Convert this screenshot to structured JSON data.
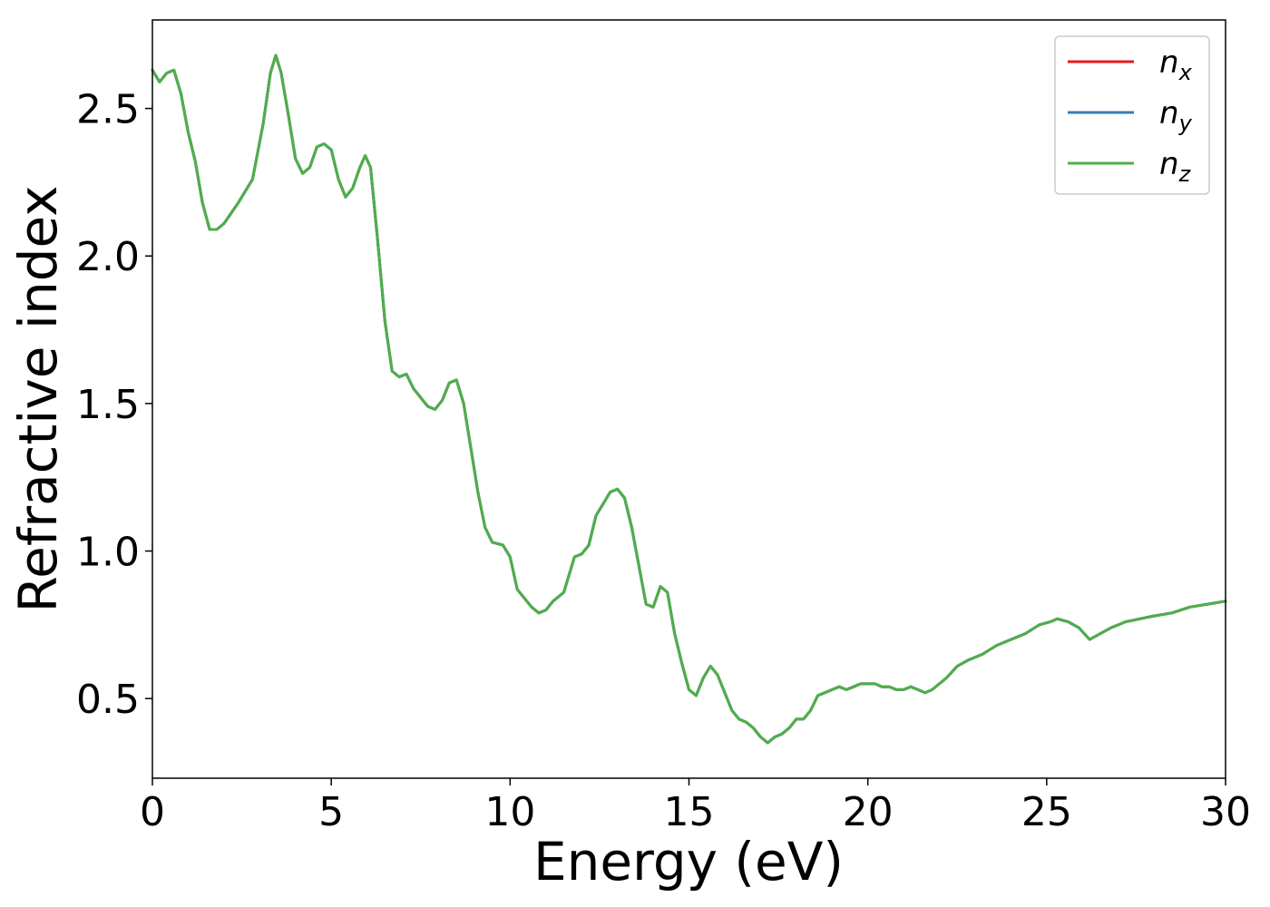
{
  "chart_data": {
    "type": "line",
    "xlabel": "Energy (eV)",
    "ylabel": "Refractive index",
    "xlim": [
      0,
      30
    ],
    "ylim": [
      0.23,
      2.8
    ],
    "xticks": [
      "0",
      "5",
      "10",
      "15",
      "20",
      "25",
      "30"
    ],
    "yticks": [
      "0.5",
      "1.0",
      "1.5",
      "2.0",
      "2.5"
    ],
    "grid": false,
    "legend_position": "top-right",
    "series": [
      {
        "name": "n",
        "subscript": "x",
        "color": "#e41a1c",
        "x": [
          0,
          0.2,
          0.4,
          0.6,
          0.8,
          1.0,
          1.2,
          1.4,
          1.6,
          1.8,
          2.0,
          2.4,
          2.8,
          3.1,
          3.3,
          3.45,
          3.6,
          3.8,
          4.0,
          4.2,
          4.4,
          4.6,
          4.8,
          5.0,
          5.2,
          5.4,
          5.6,
          5.8,
          5.95,
          6.1,
          6.3,
          6.5,
          6.7,
          6.9,
          7.1,
          7.3,
          7.5,
          7.7,
          7.9,
          8.1,
          8.3,
          8.5,
          8.7,
          8.9,
          9.1,
          9.3,
          9.5,
          9.8,
          10.0,
          10.2,
          10.4,
          10.6,
          10.8,
          11.0,
          11.2,
          11.5,
          11.8,
          12.0,
          12.2,
          12.4,
          12.6,
          12.8,
          13.0,
          13.2,
          13.4,
          13.6,
          13.8,
          14.0,
          14.2,
          14.4,
          14.6,
          14.8,
          15.0,
          15.2,
          15.4,
          15.6,
          15.8,
          16.0,
          16.2,
          16.4,
          16.6,
          16.8,
          17.0,
          17.2,
          17.4,
          17.6,
          17.8,
          18.0,
          18.2,
          18.4,
          18.6,
          18.8,
          19.0,
          19.2,
          19.4,
          19.6,
          19.8,
          20.0,
          20.2,
          20.4,
          20.6,
          20.8,
          21.0,
          21.2,
          21.4,
          21.6,
          21.8,
          22.0,
          22.2,
          22.5,
          22.8,
          23.2,
          23.6,
          24.0,
          24.4,
          24.8,
          25.1,
          25.3,
          25.6,
          25.9,
          26.2,
          26.5,
          26.8,
          27.2,
          27.6,
          28.0,
          28.5,
          29.0,
          29.5,
          30.0
        ],
        "y": [
          2.63,
          2.59,
          2.62,
          2.63,
          2.55,
          2.42,
          2.32,
          2.18,
          2.09,
          2.09,
          2.11,
          2.18,
          2.26,
          2.45,
          2.62,
          2.68,
          2.62,
          2.48,
          2.33,
          2.28,
          2.3,
          2.37,
          2.38,
          2.36,
          2.26,
          2.2,
          2.23,
          2.3,
          2.34,
          2.3,
          2.05,
          1.78,
          1.61,
          1.59,
          1.6,
          1.55,
          1.52,
          1.49,
          1.48,
          1.51,
          1.57,
          1.58,
          1.5,
          1.35,
          1.2,
          1.08,
          1.03,
          1.02,
          0.98,
          0.87,
          0.84,
          0.81,
          0.79,
          0.8,
          0.83,
          0.86,
          0.98,
          0.99,
          1.02,
          1.12,
          1.16,
          1.2,
          1.21,
          1.18,
          1.08,
          0.95,
          0.82,
          0.81,
          0.88,
          0.86,
          0.72,
          0.62,
          0.53,
          0.51,
          0.57,
          0.61,
          0.58,
          0.52,
          0.46,
          0.43,
          0.42,
          0.4,
          0.37,
          0.35,
          0.37,
          0.38,
          0.4,
          0.43,
          0.43,
          0.46,
          0.51,
          0.52,
          0.53,
          0.54,
          0.53,
          0.54,
          0.55,
          0.55,
          0.55,
          0.54,
          0.54,
          0.53,
          0.53,
          0.54,
          0.53,
          0.52,
          0.53,
          0.55,
          0.57,
          0.61,
          0.63,
          0.65,
          0.68,
          0.7,
          0.72,
          0.75,
          0.76,
          0.77,
          0.76,
          0.74,
          0.7,
          0.72,
          0.74,
          0.76,
          0.77,
          0.78,
          0.79,
          0.81,
          0.82,
          0.83
        ]
      },
      {
        "name": "n",
        "subscript": "y",
        "color": "#377eb8",
        "x": [
          0,
          0.2,
          0.4,
          0.6,
          0.8,
          1.0,
          1.2,
          1.4,
          1.6,
          1.8,
          2.0,
          2.4,
          2.8,
          3.1,
          3.3,
          3.45,
          3.6,
          3.8,
          4.0,
          4.2,
          4.4,
          4.6,
          4.8,
          5.0,
          5.2,
          5.4,
          5.6,
          5.8,
          5.95,
          6.1,
          6.3,
          6.5,
          6.7,
          6.9,
          7.1,
          7.3,
          7.5,
          7.7,
          7.9,
          8.1,
          8.3,
          8.5,
          8.7,
          8.9,
          9.1,
          9.3,
          9.5,
          9.8,
          10.0,
          10.2,
          10.4,
          10.6,
          10.8,
          11.0,
          11.2,
          11.5,
          11.8,
          12.0,
          12.2,
          12.4,
          12.6,
          12.8,
          13.0,
          13.2,
          13.4,
          13.6,
          13.8,
          14.0,
          14.2,
          14.4,
          14.6,
          14.8,
          15.0,
          15.2,
          15.4,
          15.6,
          15.8,
          16.0,
          16.2,
          16.4,
          16.6,
          16.8,
          17.0,
          17.2,
          17.4,
          17.6,
          17.8,
          18.0,
          18.2,
          18.4,
          18.6,
          18.8,
          19.0,
          19.2,
          19.4,
          19.6,
          19.8,
          20.0,
          20.2,
          20.4,
          20.6,
          20.8,
          21.0,
          21.2,
          21.4,
          21.6,
          21.8,
          22.0,
          22.2,
          22.5,
          22.8,
          23.2,
          23.6,
          24.0,
          24.4,
          24.8,
          25.1,
          25.3,
          25.6,
          25.9,
          26.2,
          26.5,
          26.8,
          27.2,
          27.6,
          28.0,
          28.5,
          29.0,
          29.5,
          30.0
        ],
        "y": [
          2.63,
          2.59,
          2.62,
          2.63,
          2.55,
          2.42,
          2.32,
          2.18,
          2.09,
          2.09,
          2.11,
          2.18,
          2.26,
          2.45,
          2.62,
          2.68,
          2.62,
          2.48,
          2.33,
          2.28,
          2.3,
          2.37,
          2.38,
          2.36,
          2.26,
          2.2,
          2.23,
          2.3,
          2.34,
          2.3,
          2.05,
          1.78,
          1.61,
          1.59,
          1.6,
          1.55,
          1.52,
          1.49,
          1.48,
          1.51,
          1.57,
          1.58,
          1.5,
          1.35,
          1.2,
          1.08,
          1.03,
          1.02,
          0.98,
          0.87,
          0.84,
          0.81,
          0.79,
          0.8,
          0.83,
          0.86,
          0.98,
          0.99,
          1.02,
          1.12,
          1.16,
          1.2,
          1.21,
          1.18,
          1.08,
          0.95,
          0.82,
          0.81,
          0.88,
          0.86,
          0.72,
          0.62,
          0.53,
          0.51,
          0.57,
          0.61,
          0.58,
          0.52,
          0.46,
          0.43,
          0.42,
          0.4,
          0.37,
          0.35,
          0.37,
          0.38,
          0.4,
          0.43,
          0.43,
          0.46,
          0.51,
          0.52,
          0.53,
          0.54,
          0.53,
          0.54,
          0.55,
          0.55,
          0.55,
          0.54,
          0.54,
          0.53,
          0.53,
          0.54,
          0.53,
          0.52,
          0.53,
          0.55,
          0.57,
          0.61,
          0.63,
          0.65,
          0.68,
          0.7,
          0.72,
          0.75,
          0.76,
          0.77,
          0.76,
          0.74,
          0.7,
          0.72,
          0.74,
          0.76,
          0.77,
          0.78,
          0.79,
          0.81,
          0.82,
          0.83
        ]
      },
      {
        "name": "n",
        "subscript": "z",
        "color": "#4daf4a",
        "x": [
          0,
          0.2,
          0.4,
          0.6,
          0.8,
          1.0,
          1.2,
          1.4,
          1.6,
          1.8,
          2.0,
          2.4,
          2.8,
          3.1,
          3.3,
          3.45,
          3.6,
          3.8,
          4.0,
          4.2,
          4.4,
          4.6,
          4.8,
          5.0,
          5.2,
          5.4,
          5.6,
          5.8,
          5.95,
          6.1,
          6.3,
          6.5,
          6.7,
          6.9,
          7.1,
          7.3,
          7.5,
          7.7,
          7.9,
          8.1,
          8.3,
          8.5,
          8.7,
          8.9,
          9.1,
          9.3,
          9.5,
          9.8,
          10.0,
          10.2,
          10.4,
          10.6,
          10.8,
          11.0,
          11.2,
          11.5,
          11.8,
          12.0,
          12.2,
          12.4,
          12.6,
          12.8,
          13.0,
          13.2,
          13.4,
          13.6,
          13.8,
          14.0,
          14.2,
          14.4,
          14.6,
          14.8,
          15.0,
          15.2,
          15.4,
          15.6,
          15.8,
          16.0,
          16.2,
          16.4,
          16.6,
          16.8,
          17.0,
          17.2,
          17.4,
          17.6,
          17.8,
          18.0,
          18.2,
          18.4,
          18.6,
          18.8,
          19.0,
          19.2,
          19.4,
          19.6,
          19.8,
          20.0,
          20.2,
          20.4,
          20.6,
          20.8,
          21.0,
          21.2,
          21.4,
          21.6,
          21.8,
          22.0,
          22.2,
          22.5,
          22.8,
          23.2,
          23.6,
          24.0,
          24.4,
          24.8,
          25.1,
          25.3,
          25.6,
          25.9,
          26.2,
          26.5,
          26.8,
          27.2,
          27.6,
          28.0,
          28.5,
          29.0,
          29.5,
          30.0
        ],
        "y": [
          2.63,
          2.59,
          2.62,
          2.63,
          2.55,
          2.42,
          2.32,
          2.18,
          2.09,
          2.09,
          2.11,
          2.18,
          2.26,
          2.45,
          2.62,
          2.68,
          2.62,
          2.48,
          2.33,
          2.28,
          2.3,
          2.37,
          2.38,
          2.36,
          2.26,
          2.2,
          2.23,
          2.3,
          2.34,
          2.3,
          2.05,
          1.78,
          1.61,
          1.59,
          1.6,
          1.55,
          1.52,
          1.49,
          1.48,
          1.51,
          1.57,
          1.58,
          1.5,
          1.35,
          1.2,
          1.08,
          1.03,
          1.02,
          0.98,
          0.87,
          0.84,
          0.81,
          0.79,
          0.8,
          0.83,
          0.86,
          0.98,
          0.99,
          1.02,
          1.12,
          1.16,
          1.2,
          1.21,
          1.18,
          1.08,
          0.95,
          0.82,
          0.81,
          0.88,
          0.86,
          0.72,
          0.62,
          0.53,
          0.51,
          0.57,
          0.61,
          0.58,
          0.52,
          0.46,
          0.43,
          0.42,
          0.4,
          0.37,
          0.35,
          0.37,
          0.38,
          0.4,
          0.43,
          0.43,
          0.46,
          0.51,
          0.52,
          0.53,
          0.54,
          0.53,
          0.54,
          0.55,
          0.55,
          0.55,
          0.54,
          0.54,
          0.53,
          0.53,
          0.54,
          0.53,
          0.52,
          0.53,
          0.55,
          0.57,
          0.61,
          0.63,
          0.65,
          0.68,
          0.7,
          0.72,
          0.75,
          0.76,
          0.77,
          0.76,
          0.74,
          0.7,
          0.72,
          0.74,
          0.76,
          0.77,
          0.78,
          0.79,
          0.81,
          0.82,
          0.83
        ]
      }
    ]
  }
}
